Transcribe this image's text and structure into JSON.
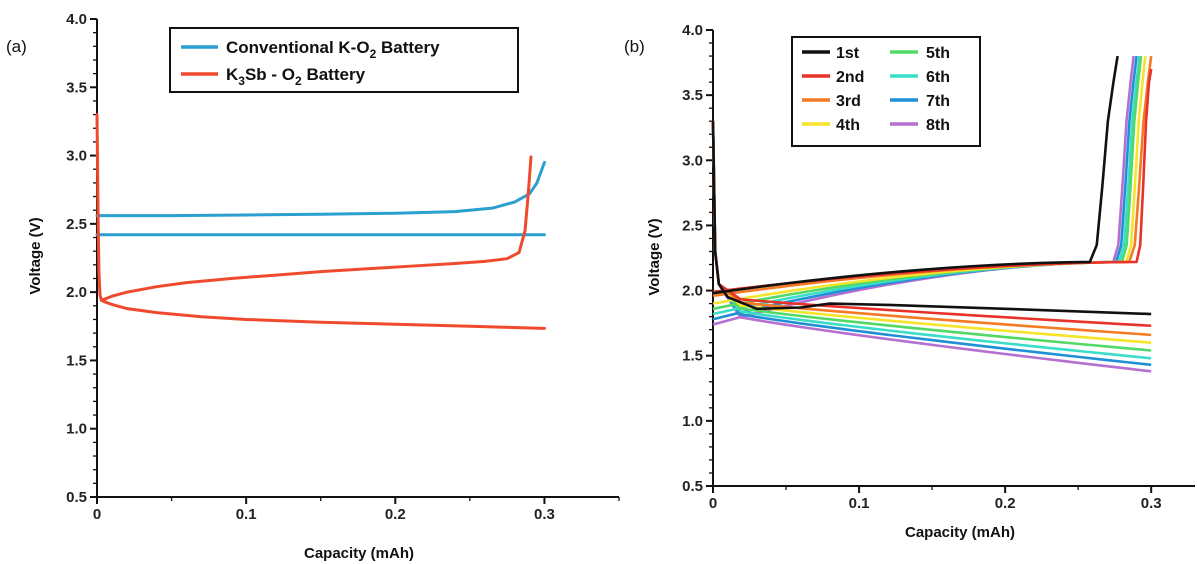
{
  "chart_data": [
    {
      "panel_label": "(a)",
      "type": "line",
      "xlabel": "Capacity (mAh)",
      "ylabel": "Voltage (V)",
      "xlim": [
        0,
        0.35
      ],
      "ylim": [
        0.5,
        4.0
      ],
      "xticks": [
        "0",
        "0.1",
        "0.2",
        "0.3"
      ],
      "yticks": [
        "0.5",
        "1.0",
        "1.5",
        "2.0",
        "2.5",
        "3.0",
        "3.5",
        "4.0"
      ],
      "legend_position": "top-right",
      "series": [
        {
          "name_main": "Conventional K-O",
          "name_sub": "2",
          "name_rest": " Battery",
          "color": "#2a9fd0",
          "segments": [
            [
              [
                0,
                2.56
              ],
              [
                0.05,
                2.56
              ],
              [
                0.1,
                2.565
              ],
              [
                0.15,
                2.57
              ],
              [
                0.2,
                2.578
              ],
              [
                0.24,
                2.59
              ],
              [
                0.265,
                2.615
              ],
              [
                0.28,
                2.66
              ],
              [
                0.29,
                2.72
              ],
              [
                0.295,
                2.8
              ],
              [
                0.3,
                2.95
              ]
            ],
            [
              [
                0,
                2.42
              ],
              [
                0.05,
                2.42
              ],
              [
                0.1,
                2.42
              ],
              [
                0.15,
                2.42
              ],
              [
                0.2,
                2.42
              ],
              [
                0.25,
                2.42
              ],
              [
                0.3,
                2.42
              ]
            ]
          ]
        },
        {
          "name_pre": "K",
          "name_sub1": "3",
          "name_mid": "Sb - O",
          "name_sub2": "2",
          "name_rest": " Battery",
          "color": "#f04a2e",
          "segments": [
            [
              [
                0,
                3.3
              ],
              [
                0.0003,
                3.0
              ],
              [
                0.0008,
                2.5
              ],
              [
                0.0013,
                2.15
              ],
              [
                0.002,
                1.98
              ],
              [
                0.003,
                1.94
              ],
              [
                0.005,
                1.93
              ],
              [
                0.01,
                1.91
              ],
              [
                0.02,
                1.88
              ],
              [
                0.04,
                1.85
              ],
              [
                0.07,
                1.82
              ],
              [
                0.1,
                1.8
              ],
              [
                0.15,
                1.78
              ],
              [
                0.2,
                1.765
              ],
              [
                0.25,
                1.75
              ],
              [
                0.3,
                1.735
              ]
            ],
            [
              [
                0.003,
                1.94
              ],
              [
                0.01,
                1.97
              ],
              [
                0.02,
                2.0
              ],
              [
                0.04,
                2.04
              ],
              [
                0.06,
                2.07
              ],
              [
                0.09,
                2.1
              ],
              [
                0.12,
                2.125
              ],
              [
                0.15,
                2.15
              ],
              [
                0.18,
                2.17
              ],
              [
                0.21,
                2.19
              ],
              [
                0.24,
                2.21
              ],
              [
                0.26,
                2.225
              ],
              [
                0.275,
                2.245
              ],
              [
                0.283,
                2.29
              ],
              [
                0.287,
                2.45
              ],
              [
                0.289,
                2.7
              ],
              [
                0.291,
                2.99
              ]
            ]
          ]
        }
      ]
    },
    {
      "panel_label": "(b)",
      "type": "line",
      "xlabel": "Capacity (mAh)",
      "ylabel": "Voltage (V)",
      "xlim": [
        0,
        0.33
      ],
      "ylim": [
        0.5,
        4.0
      ],
      "xticks": [
        "0",
        "0.1",
        "0.2",
        "0.3"
      ],
      "yticks": [
        "0.5",
        "1.0",
        "1.5",
        "2.0",
        "2.5",
        "3.0",
        "3.5",
        "4.0"
      ],
      "legend_position": "top-left",
      "series": [
        {
          "name": "1st",
          "color": "#111111",
          "discharge_end": 1.82,
          "charge_start": 1.98,
          "rise_x": 0.258,
          "charge_end": [
            0.277,
            3.8
          ]
        },
        {
          "name": "2nd",
          "color": "#e8322a",
          "discharge_end": 1.73,
          "charge_start": 1.99,
          "rise_x": 0.29,
          "charge_end": [
            0.3,
            3.7
          ]
        },
        {
          "name": "3rd",
          "color": "#f47a24",
          "discharge_end": 1.66,
          "charge_start": 1.96,
          "rise_x": 0.285,
          "charge_end": [
            0.3,
            3.8
          ]
        },
        {
          "name": "4th",
          "color": "#f5e42a",
          "discharge_end": 1.6,
          "charge_start": 1.9,
          "rise_x": 0.283,
          "charge_end": [
            0.296,
            3.8
          ]
        },
        {
          "name": "5th",
          "color": "#52d965",
          "discharge_end": 1.54,
          "charge_start": 1.86,
          "rise_x": 0.28,
          "charge_end": [
            0.293,
            3.8
          ]
        },
        {
          "name": "6th",
          "color": "#39ddc8",
          "discharge_end": 1.48,
          "charge_start": 1.82,
          "rise_x": 0.278,
          "charge_end": [
            0.292,
            3.8
          ]
        },
        {
          "name": "7th",
          "color": "#1f8fd6",
          "discharge_end": 1.43,
          "charge_start": 1.78,
          "rise_x": 0.276,
          "charge_end": [
            0.29,
            3.8
          ]
        },
        {
          "name": "8th",
          "color": "#b56fd0",
          "discharge_end": 1.38,
          "charge_start": 1.74,
          "rise_x": 0.274,
          "charge_end": [
            0.288,
            3.8
          ]
        }
      ]
    }
  ]
}
